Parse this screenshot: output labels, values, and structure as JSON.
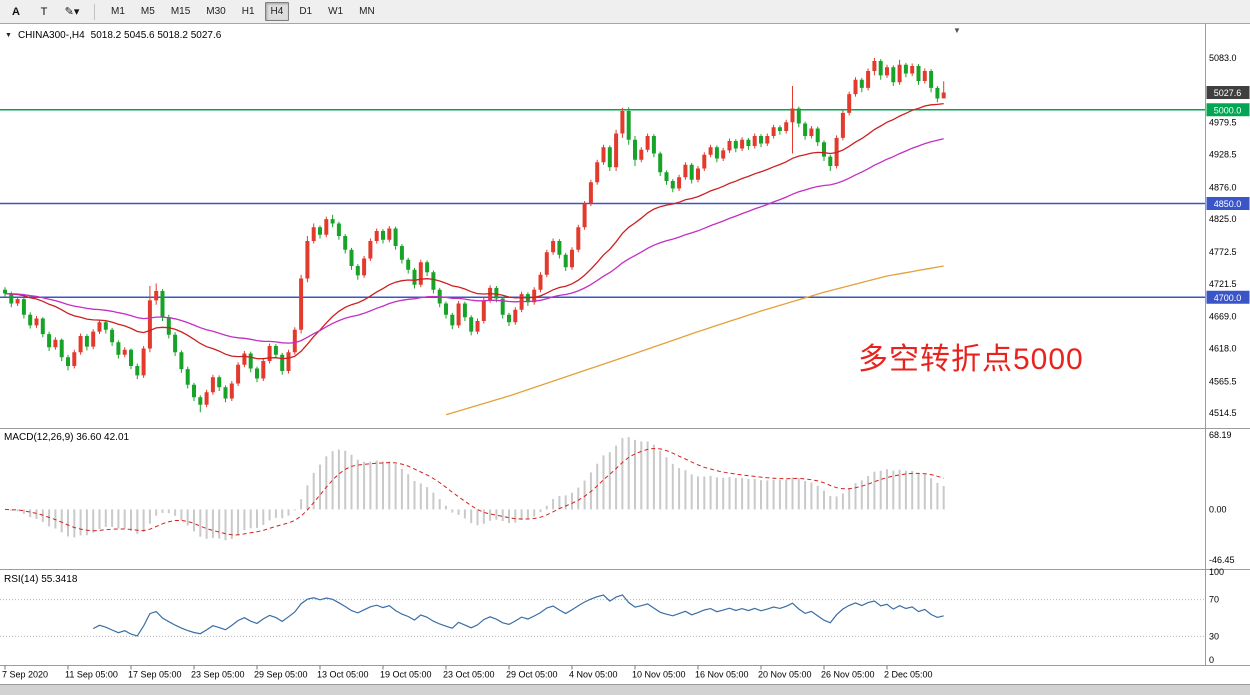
{
  "toolbar": {
    "tool_buttons": [
      {
        "label": "A",
        "name": "cursor-tool",
        "bold": true
      },
      {
        "label": "T",
        "name": "text-tool",
        "bold": false
      },
      {
        "label": "✎",
        "name": "draw-tool",
        "dropdown": "▾",
        "bold": false
      }
    ],
    "timeframes": [
      "M1",
      "M5",
      "M15",
      "M30",
      "H1",
      "H4",
      "D1",
      "W1",
      "MN"
    ],
    "active_timeframe": "H4"
  },
  "chart": {
    "expand_icon": "▼",
    "shift_marker": "▼",
    "symbol_title": "CHINA300-,H4",
    "ohlc_text": "5018.2 5045.6 5018.2 5027.6",
    "annotation": {
      "text": "多空转折点5000",
      "color": "#e8231d"
    },
    "current_price": {
      "label": "5027.6",
      "value": 5027.6,
      "bg": "#3f3f3f"
    },
    "hlines": [
      {
        "label": "5000.0",
        "value": 5000.0,
        "color": "#00a651"
      },
      {
        "label": "4850.0",
        "value": 4850.0,
        "color": "#3a55c8"
      },
      {
        "label": "4700.0",
        "value": 4700.0,
        "color": "#3a55c8"
      }
    ],
    "axis_labels": [
      {
        "label": "5083.0",
        "value": 5083.0
      },
      {
        "label": "4979.5",
        "value": 4979.5
      },
      {
        "label": "4928.5",
        "value": 4928.5
      },
      {
        "label": "4876.0",
        "value": 4876.0
      },
      {
        "label": "4825.0",
        "value": 4825.0
      },
      {
        "label": "4772.5",
        "value": 4772.5
      },
      {
        "label": "4721.5",
        "value": 4721.5
      },
      {
        "label": "4669.0",
        "value": 4669.0
      },
      {
        "label": "4618.0",
        "value": 4618.0
      },
      {
        "label": "4565.5",
        "value": 4565.5
      },
      {
        "label": "4514.5",
        "value": 4514.5
      }
    ]
  },
  "macd_panel": {
    "label": "MACD(12,26,9) 36.60 42.01",
    "scale_labels": [
      {
        "label": "68.19",
        "value": 68.19
      },
      {
        "label": "0.00",
        "value": 0
      },
      {
        "label": "-46.45",
        "value": -46.45
      }
    ]
  },
  "rsi_panel": {
    "label": "RSI(14) 55.3418",
    "levels": [
      70,
      30
    ],
    "scale_labels": [
      {
        "label": "100",
        "value": 100
      },
      {
        "label": "70",
        "value": 70
      },
      {
        "label": "30",
        "value": 30
      },
      {
        "label": "0",
        "value": 0
      }
    ]
  },
  "date_axis": [
    {
      "label": "7 Sep 2020",
      "i": 0
    },
    {
      "label": "11 Sep 05:00",
      "i": 10
    },
    {
      "label": "17 Sep 05:00",
      "i": 20
    },
    {
      "label": "23 Sep 05:00",
      "i": 30
    },
    {
      "label": "29 Sep 05:00",
      "i": 40
    },
    {
      "label": "13 Oct 05:00",
      "i": 50
    },
    {
      "label": "19 Oct 05:00",
      "i": 60
    },
    {
      "label": "23 Oct 05:00",
      "i": 70
    },
    {
      "label": "29 Oct 05:00",
      "i": 80
    },
    {
      "label": "4 Nov 05:00",
      "i": 90
    },
    {
      "label": "10 Nov 05:00",
      "i": 100
    },
    {
      "label": "16 Nov 05:00",
      "i": 110
    },
    {
      "label": "20 Nov 05:00",
      "i": 120
    },
    {
      "label": "26 Nov 05:00",
      "i": 130
    },
    {
      "label": "2 Dec 05:00",
      "i": 140
    }
  ],
  "chart_data": {
    "type": "candlestick",
    "symbol": "CHINA300-",
    "timeframe": "H4",
    "title": "CHINA300-,H4 5018.2 5045.6 5018.2 5027.6",
    "ylim": [
      4494,
      5134
    ],
    "colors": {
      "up": "#e23b2e",
      "down": "#17a327",
      "ma_fast": "#cc2020",
      "ma_mid": "#c32ec3",
      "ma_slow": "#e3a13c",
      "macd_hist": "#c9c9c9",
      "macd_signal": "#d42020",
      "rsi": "#3a6ea5"
    },
    "overlays": {
      "ma_fast_period": 30,
      "ma_mid_period": 60,
      "orange_keypoints": [
        [
          70,
          4512
        ],
        [
          80,
          4542
        ],
        [
          90,
          4576
        ],
        [
          100,
          4610
        ],
        [
          110,
          4645
        ],
        [
          120,
          4678
        ],
        [
          130,
          4708
        ],
        [
          140,
          4734
        ],
        [
          149,
          4750
        ]
      ]
    },
    "indicators": {
      "macd": {
        "fast": 12,
        "slow": 26,
        "signal": 9,
        "current": [
          36.6,
          42.01
        ],
        "range": [
          -52,
          73
        ]
      },
      "rsi": {
        "period": 14,
        "current": 55.3418,
        "range": [
          0,
          100
        ]
      }
    },
    "candles": [
      [
        4712,
        4716,
        4700,
        4706
      ],
      [
        4706,
        4709,
        4684,
        4690
      ],
      [
        4690,
        4701,
        4686,
        4697
      ],
      [
        4697,
        4699,
        4666,
        4672
      ],
      [
        4672,
        4676,
        4650,
        4655
      ],
      [
        4655,
        4670,
        4651,
        4666
      ],
      [
        4666,
        4668,
        4636,
        4641
      ],
      [
        4641,
        4645,
        4614,
        4620
      ],
      [
        4620,
        4636,
        4616,
        4632
      ],
      [
        4632,
        4634,
        4598,
        4604
      ],
      [
        4604,
        4608,
        4583,
        4590
      ],
      [
        4590,
        4616,
        4586,
        4612
      ],
      [
        4612,
        4642,
        4608,
        4638
      ],
      [
        4638,
        4641,
        4615,
        4621
      ],
      [
        4621,
        4649,
        4617,
        4645
      ],
      [
        4645,
        4664,
        4641,
        4660
      ],
      [
        4660,
        4663,
        4642,
        4648
      ],
      [
        4648,
        4651,
        4622,
        4628
      ],
      [
        4628,
        4631,
        4602,
        4608
      ],
      [
        4608,
        4620,
        4604,
        4616
      ],
      [
        4616,
        4618,
        4585,
        4590
      ],
      [
        4590,
        4594,
        4569,
        4575
      ],
      [
        4575,
        4622,
        4571,
        4618
      ],
      [
        4618,
        4718,
        4612,
        4695
      ],
      [
        4695,
        4722,
        4688,
        4710
      ],
      [
        4710,
        4713,
        4662,
        4668
      ],
      [
        4668,
        4672,
        4634,
        4640
      ],
      [
        4640,
        4644,
        4606,
        4612
      ],
      [
        4612,
        4615,
        4579,
        4585
      ],
      [
        4585,
        4589,
        4554,
        4560
      ],
      [
        4560,
        4563,
        4534,
        4540
      ],
      [
        4540,
        4543,
        4516,
        4528
      ],
      [
        4528,
        4552,
        4524,
        4548
      ],
      [
        4548,
        4576,
        4544,
        4572
      ],
      [
        4572,
        4575,
        4550,
        4556
      ],
      [
        4556,
        4559,
        4532,
        4538
      ],
      [
        4538,
        4566,
        4534,
        4562
      ],
      [
        4562,
        4596,
        4558,
        4592
      ],
      [
        4592,
        4614,
        4588,
        4610
      ],
      [
        4610,
        4613,
        4580,
        4586
      ],
      [
        4586,
        4589,
        4564,
        4570
      ],
      [
        4570,
        4602,
        4566,
        4598
      ],
      [
        4598,
        4626,
        4594,
        4622
      ],
      [
        4622,
        4625,
        4602,
        4608
      ],
      [
        4608,
        4611,
        4576,
        4582
      ],
      [
        4582,
        4616,
        4578,
        4612
      ],
      [
        4612,
        4652,
        4608,
        4648
      ],
      [
        4648,
        4736,
        4642,
        4730
      ],
      [
        4730,
        4798,
        4724,
        4790
      ],
      [
        4790,
        4818,
        4786,
        4812
      ],
      [
        4812,
        4815,
        4794,
        4800
      ],
      [
        4800,
        4829,
        4796,
        4825
      ],
      [
        4825,
        4832,
        4812,
        4818
      ],
      [
        4818,
        4821,
        4792,
        4798
      ],
      [
        4798,
        4801,
        4770,
        4776
      ],
      [
        4776,
        4779,
        4744,
        4750
      ],
      [
        4750,
        4753,
        4728,
        4735
      ],
      [
        4735,
        4766,
        4731,
        4762
      ],
      [
        4762,
        4794,
        4758,
        4790
      ],
      [
        4790,
        4810,
        4786,
        4806
      ],
      [
        4806,
        4809,
        4786,
        4792
      ],
      [
        4792,
        4814,
        4788,
        4810
      ],
      [
        4810,
        4813,
        4776,
        4782
      ],
      [
        4782,
        4785,
        4754,
        4760
      ],
      [
        4760,
        4763,
        4738,
        4744
      ],
      [
        4744,
        4747,
        4714,
        4720
      ],
      [
        4720,
        4760,
        4716,
        4756
      ],
      [
        4756,
        4759,
        4734,
        4740
      ],
      [
        4740,
        4743,
        4706,
        4712
      ],
      [
        4712,
        4715,
        4684,
        4690
      ],
      [
        4690,
        4693,
        4666,
        4672
      ],
      [
        4672,
        4675,
        4649,
        4655
      ],
      [
        4655,
        4694,
        4651,
        4690
      ],
      [
        4690,
        4693,
        4662,
        4668
      ],
      [
        4668,
        4671,
        4639,
        4645
      ],
      [
        4645,
        4666,
        4641,
        4662
      ],
      [
        4662,
        4699,
        4658,
        4695
      ],
      [
        4695,
        4719,
        4691,
        4715
      ],
      [
        4715,
        4718,
        4692,
        4698
      ],
      [
        4698,
        4701,
        4666,
        4672
      ],
      [
        4672,
        4675,
        4654,
        4660
      ],
      [
        4660,
        4684,
        4656,
        4680
      ],
      [
        4680,
        4709,
        4676,
        4705
      ],
      [
        4705,
        4708,
        4686,
        4692
      ],
      [
        4692,
        4716,
        4688,
        4712
      ],
      [
        4712,
        4740,
        4708,
        4736
      ],
      [
        4736,
        4776,
        4732,
        4772
      ],
      [
        4772,
        4794,
        4768,
        4790
      ],
      [
        4790,
        4793,
        4762,
        4768
      ],
      [
        4768,
        4771,
        4742,
        4748
      ],
      [
        4748,
        4780,
        4744,
        4776
      ],
      [
        4776,
        4816,
        4772,
        4812
      ],
      [
        4812,
        4854,
        4808,
        4850
      ],
      [
        4850,
        4888,
        4846,
        4884
      ],
      [
        4884,
        4920,
        4880,
        4916
      ],
      [
        4916,
        4944,
        4912,
        4940
      ],
      [
        4940,
        4943,
        4902,
        4908
      ],
      [
        4908,
        4968,
        4902,
        4962
      ],
      [
        4962,
        5003,
        4955,
        4998
      ],
      [
        4998,
        5004,
        4944,
        4952
      ],
      [
        4952,
        4958,
        4910,
        4920
      ],
      [
        4920,
        4940,
        4916,
        4936
      ],
      [
        4936,
        4962,
        4932,
        4958
      ],
      [
        4958,
        4961,
        4924,
        4930
      ],
      [
        4930,
        4933,
        4894,
        4900
      ],
      [
        4900,
        4903,
        4880,
        4886
      ],
      [
        4886,
        4889,
        4868,
        4874
      ],
      [
        4874,
        4896,
        4870,
        4892
      ],
      [
        4892,
        4916,
        4888,
        4912
      ],
      [
        4912,
        4915,
        4882,
        4888
      ],
      [
        4888,
        4910,
        4884,
        4906
      ],
      [
        4906,
        4932,
        4902,
        4928
      ],
      [
        4928,
        4944,
        4924,
        4940
      ],
      [
        4940,
        4943,
        4916,
        4922
      ],
      [
        4922,
        4939,
        4918,
        4935
      ],
      [
        4935,
        4954,
        4931,
        4950
      ],
      [
        4950,
        4953,
        4932,
        4938
      ],
      [
        4938,
        4956,
        4934,
        4952
      ],
      [
        4952,
        4955,
        4936,
        4942
      ],
      [
        4942,
        4962,
        4938,
        4958
      ],
      [
        4958,
        4961,
        4940,
        4946
      ],
      [
        4946,
        4962,
        4942,
        4958
      ],
      [
        4958,
        4976,
        4954,
        4972
      ],
      [
        4972,
        4975,
        4960,
        4966
      ],
      [
        4966,
        4984,
        4962,
        4980
      ],
      [
        4980,
        5038,
        4930,
        5002
      ],
      [
        5002,
        5005,
        4972,
        4978
      ],
      [
        4978,
        4981,
        4952,
        4958
      ],
      [
        4958,
        4974,
        4954,
        4970
      ],
      [
        4970,
        4973,
        4942,
        4948
      ],
      [
        4948,
        4951,
        4918,
        4925
      ],
      [
        4925,
        4928,
        4902,
        4910
      ],
      [
        4910,
        4959,
        4906,
        4955
      ],
      [
        4955,
        4999,
        4951,
        4995
      ],
      [
        4995,
        5029,
        4991,
        5025
      ],
      [
        5025,
        5052,
        5021,
        5048
      ],
      [
        5048,
        5051,
        5028,
        5035
      ],
      [
        5035,
        5066,
        5031,
        5062
      ],
      [
        5062,
        5083,
        5055,
        5078
      ],
      [
        5078,
        5081,
        5048,
        5055
      ],
      [
        5055,
        5072,
        5051,
        5068
      ],
      [
        5068,
        5071,
        5038,
        5044
      ],
      [
        5044,
        5080,
        5040,
        5072
      ],
      [
        5072,
        5075,
        5052,
        5058
      ],
      [
        5058,
        5074,
        5054,
        5070
      ],
      [
        5070,
        5073,
        5040,
        5046
      ],
      [
        5046,
        5066,
        5042,
        5062
      ],
      [
        5062,
        5065,
        5028,
        5035
      ],
      [
        5035,
        5038,
        5012,
        5018
      ],
      [
        5018.2,
        5045.6,
        5018.2,
        5027.6
      ]
    ]
  }
}
